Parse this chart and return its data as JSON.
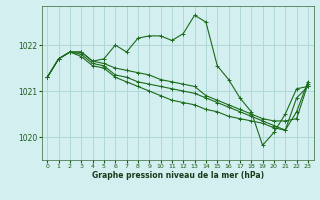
{
  "background_color": "#d4efef",
  "grid_color": "#b0d8d8",
  "line_color": "#1a6b1a",
  "xlabel": "Graphe pression niveau de la mer (hPa)",
  "ylim": [
    1019.5,
    1022.85
  ],
  "yticks": [
    1020,
    1021,
    1022
  ],
  "xlim": [
    -0.5,
    23.5
  ],
  "xticks": [
    0,
    1,
    2,
    3,
    4,
    5,
    6,
    7,
    8,
    9,
    10,
    11,
    12,
    13,
    14,
    15,
    16,
    17,
    18,
    19,
    20,
    21,
    22,
    23
  ],
  "series": [
    [
      1021.3,
      1021.7,
      1021.85,
      1021.85,
      1021.65,
      1021.7,
      1022.0,
      1021.85,
      1022.15,
      1022.2,
      1022.2,
      1022.1,
      1022.25,
      1022.65,
      1022.5,
      1021.55,
      1021.25,
      1020.85,
      1020.55,
      1019.82,
      1020.1,
      1020.5,
      1021.05,
      1021.1
    ],
    [
      1021.3,
      1021.7,
      1021.85,
      1021.85,
      1021.65,
      1021.6,
      1021.5,
      1021.45,
      1021.4,
      1021.35,
      1021.25,
      1021.2,
      1021.15,
      1021.1,
      1020.9,
      1020.8,
      1020.7,
      1020.6,
      1020.5,
      1020.4,
      1020.35,
      1020.35,
      1020.4,
      1021.15
    ],
    [
      1021.3,
      1021.7,
      1021.85,
      1021.75,
      1021.55,
      1021.5,
      1021.3,
      1021.2,
      1021.1,
      1021.0,
      1020.9,
      1020.8,
      1020.75,
      1020.7,
      1020.6,
      1020.55,
      1020.45,
      1020.4,
      1020.35,
      1020.3,
      1020.2,
      1020.15,
      1020.85,
      1021.1
    ],
    [
      1021.3,
      1021.7,
      1021.85,
      1021.8,
      1021.6,
      1021.55,
      1021.35,
      1021.3,
      1021.2,
      1021.15,
      1021.1,
      1021.05,
      1021.0,
      1020.95,
      1020.85,
      1020.75,
      1020.65,
      1020.55,
      1020.45,
      1020.35,
      1020.25,
      1020.15,
      1020.55,
      1021.2
    ]
  ]
}
